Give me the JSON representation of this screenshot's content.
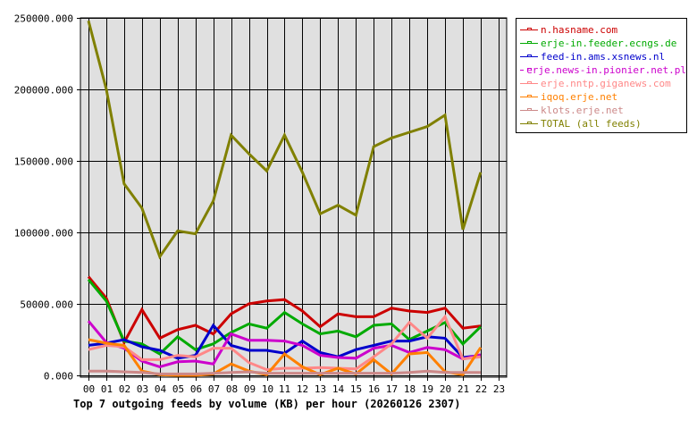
{
  "chart_data": {
    "type": "line",
    "title": "Top 7 outgoing feeds by volume (KB) per hour (20260126 2307)",
    "xlabel": "",
    "ylabel": "",
    "ylim": [
      0,
      250000
    ],
    "yticks": [
      "0.000",
      "50000.000",
      "100000.000",
      "150000.000",
      "200000.000",
      "250000.000"
    ],
    "categories": [
      "00",
      "01",
      "02",
      "03",
      "04",
      "05",
      "06",
      "07",
      "08",
      "09",
      "10",
      "11",
      "12",
      "13",
      "14",
      "15",
      "16",
      "17",
      "18",
      "19",
      "20",
      "21",
      "22",
      "23"
    ],
    "grid": true,
    "legend_position": "right",
    "series": [
      {
        "name": "n.hasname.com",
        "color": "#CC0000",
        "values": [
          69000,
          54000,
          23000,
          46000,
          26000,
          32000,
          35000,
          29000,
          43000,
          50000,
          52000,
          53000,
          45000,
          34000,
          43000,
          41000,
          41000,
          47000,
          45000,
          44000,
          47000,
          33000,
          34500,
          null
        ]
      },
      {
        "name": "erje-in.feeder.ecngs.de",
        "color": "#00AA00",
        "values": [
          67000,
          52000,
          24000,
          22000,
          15000,
          27000,
          18000,
          22000,
          30000,
          36000,
          33000,
          44000,
          36000,
          29000,
          31000,
          27000,
          35000,
          36000,
          25000,
          31000,
          37000,
          22000,
          34000,
          null
        ]
      },
      {
        "name": "feed-in.ams.xsnews.nl",
        "color": "#0000CC",
        "values": [
          21000,
          22500,
          25000,
          20000,
          17500,
          12000,
          14000,
          35000,
          21000,
          17500,
          17500,
          15500,
          24000,
          16000,
          13000,
          18000,
          21000,
          24000,
          24000,
          27000,
          26000,
          12500,
          14000,
          null
        ]
      },
      {
        "name": "erje.news-in.pionier.net.pl",
        "color": "#CC00CC",
        "values": [
          38000,
          23000,
          19000,
          10000,
          6000,
          9500,
          10000,
          8000,
          29000,
          24500,
          24500,
          24000,
          21000,
          14000,
          12500,
          12000,
          19000,
          21000,
          16000,
          19500,
          18000,
          11500,
          14500,
          null
        ]
      },
      {
        "name": "erje.nntp.giganews.com",
        "color": "#FF8888",
        "values": [
          18000,
          21000,
          20000,
          11000,
          11000,
          14000,
          13000,
          19000,
          19000,
          9000,
          4000,
          5000,
          5000,
          5500,
          5000,
          4500,
          13000,
          22000,
          37000,
          26000,
          41000,
          11500,
          13000,
          null
        ]
      },
      {
        "name": "iqoq.erje.net",
        "color": "#FF8000",
        "values": [
          25000,
          22500,
          21000,
          3000,
          500,
          0,
          0,
          1000,
          8000,
          3000,
          500,
          15000,
          6000,
          500,
          5000,
          1000,
          11000,
          1000,
          15000,
          16000,
          2500,
          500,
          19500,
          null
        ]
      },
      {
        "name": "klots.erje.net",
        "color": "#CC8888",
        "values": [
          3000,
          3000,
          2500,
          2000,
          1000,
          1000,
          1000,
          1500,
          2000,
          2500,
          1500,
          1500,
          1500,
          1500,
          1500,
          1500,
          1500,
          1500,
          2000,
          3000,
          2000,
          2000,
          2000,
          null
        ]
      },
      {
        "name": "TOTAL (all feeds)",
        "color": "#808000",
        "values": [
          248000,
          200000,
          134000,
          117000,
          83000,
          101000,
          99000,
          122000,
          168000,
          155000,
          143000,
          168000,
          142000,
          113000,
          119000,
          112000,
          160000,
          166000,
          170000,
          174000,
          182000,
          102000,
          142000,
          null
        ]
      }
    ]
  }
}
